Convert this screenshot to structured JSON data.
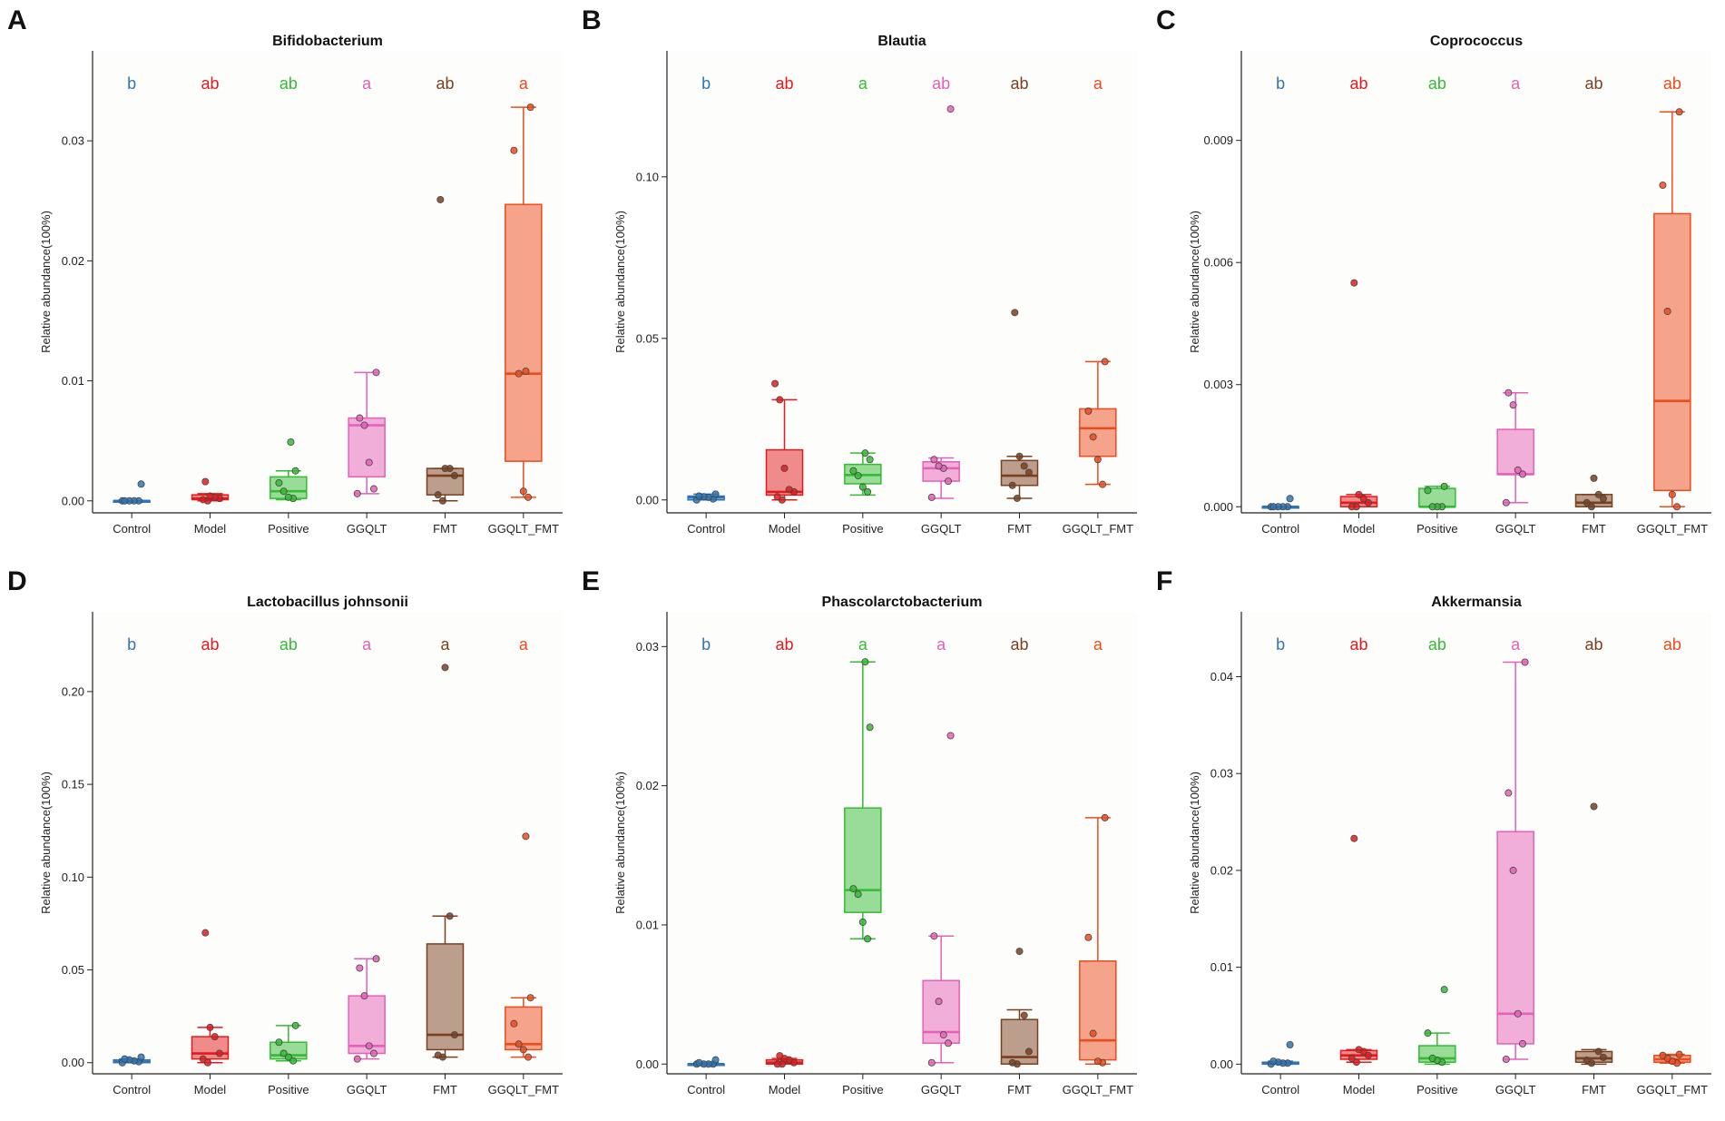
{
  "figure": {
    "groups": [
      "Control",
      "Model",
      "Positive",
      "GGQLT",
      "FMT",
      "GGQLT_FMT"
    ],
    "colors": [
      "#2e75b6",
      "#e41a1c",
      "#33bb33",
      "#e65fb8",
      "#7b3f1f",
      "#ee4b1b"
    ],
    "ylabel": "Relative abundance(100%)"
  },
  "chart_data": [
    {
      "type": "box",
      "panel": "A",
      "title": "Bifidobacterium",
      "ylabel": "Relative abundance(100%)",
      "ylim": [
        -0.001,
        0.0375
      ],
      "yticks": [
        0.0,
        0.01,
        0.02,
        0.03
      ],
      "ytick_labels": [
        "0.00",
        "0.01",
        "0.02",
        "0.03"
      ],
      "categories": [
        "Control",
        "Model",
        "Positive",
        "GGQLT",
        "FMT",
        "GGQLT_FMT"
      ],
      "letters": [
        "b",
        "ab",
        "ab",
        "a",
        "ab",
        "a"
      ],
      "series": [
        {
          "name": "Control",
          "box": {
            "wl": 0.0,
            "q1": 0.0,
            "med": 0.0,
            "q3": 0.0,
            "wh": 0.0
          },
          "points": [
            0.0,
            0.0,
            0.0,
            0.0,
            0.0,
            0.0014
          ]
        },
        {
          "name": "Model",
          "box": {
            "wl": 0.0,
            "q1": 0.0001,
            "med": 0.0002,
            "q3": 0.0005,
            "wh": 0.0006
          },
          "points": [
            0.0,
            0.0001,
            0.0002,
            0.0003,
            0.0004,
            0.0016
          ]
        },
        {
          "name": "Positive",
          "box": {
            "wl": 0.0001,
            "q1": 0.0002,
            "med": 0.0008,
            "q3": 0.002,
            "wh": 0.0025
          },
          "points": [
            0.0002,
            0.0003,
            0.0008,
            0.0015,
            0.0025,
            0.0049
          ]
        },
        {
          "name": "GGQLT",
          "box": {
            "wl": 0.0006,
            "q1": 0.002,
            "med": 0.0063,
            "q3": 0.0069,
            "wh": 0.0107
          },
          "points": [
            0.0006,
            0.001,
            0.0032,
            0.0063,
            0.0069,
            0.0107
          ]
        },
        {
          "name": "FMT",
          "box": {
            "wl": 0.0,
            "q1": 0.0005,
            "med": 0.0021,
            "q3": 0.0027,
            "wh": 0.0027
          },
          "points": [
            0.0,
            0.0005,
            0.0021,
            0.0027,
            0.0027,
            0.0251
          ]
        },
        {
          "name": "GGQLT_FMT",
          "box": {
            "wl": 0.0003,
            "q1": 0.0033,
            "med": 0.0106,
            "q3": 0.0247,
            "wh": 0.0328
          },
          "points": [
            0.0003,
            0.0008,
            0.0106,
            0.0292,
            0.0328,
            0.0108
          ]
        }
      ]
    },
    {
      "type": "box",
      "panel": "B",
      "title": "Blautia",
      "ylabel": "Relative abundance(100%)",
      "ylim": [
        -0.004,
        0.139
      ],
      "yticks": [
        0.0,
        0.05,
        0.1
      ],
      "ytick_labels": [
        "0.00",
        "0.05",
        "0.10"
      ],
      "categories": [
        "Control",
        "Model",
        "Positive",
        "GGQLT",
        "FMT",
        "GGQLT_FMT"
      ],
      "letters": [
        "b",
        "ab",
        "a",
        "ab",
        "ab",
        "a"
      ],
      "series": [
        {
          "name": "Control",
          "box": {
            "wl": 0.0,
            "q1": 0.0,
            "med": 0.0008,
            "q3": 0.0012,
            "wh": 0.0018
          },
          "points": [
            0.0,
            0.0003,
            0.0008,
            0.001,
            0.0012,
            0.0018
          ]
        },
        {
          "name": "Model",
          "box": {
            "wl": 0.0,
            "q1": 0.0015,
            "med": 0.0025,
            "q3": 0.0155,
            "wh": 0.031
          },
          "points": [
            0.0,
            0.001,
            0.0025,
            0.0032,
            0.0098,
            0.031,
            0.036
          ]
        },
        {
          "name": "Positive",
          "box": {
            "wl": 0.0015,
            "q1": 0.005,
            "med": 0.0077,
            "q3": 0.011,
            "wh": 0.0145
          },
          "points": [
            0.0025,
            0.004,
            0.0075,
            0.009,
            0.0125,
            0.0145
          ]
        },
        {
          "name": "GGQLT",
          "box": {
            "wl": 0.0005,
            "q1": 0.0058,
            "med": 0.0098,
            "q3": 0.0118,
            "wh": 0.013
          },
          "points": [
            0.0008,
            0.0058,
            0.0098,
            0.0105,
            0.0125,
            0.121
          ]
        },
        {
          "name": "FMT",
          "box": {
            "wl": 0.0005,
            "q1": 0.0045,
            "med": 0.0075,
            "q3": 0.0122,
            "wh": 0.0135
          },
          "points": [
            0.0005,
            0.0045,
            0.0085,
            0.0105,
            0.0135,
            0.058
          ]
        },
        {
          "name": "GGQLT_FMT",
          "box": {
            "wl": 0.0048,
            "q1": 0.0135,
            "med": 0.0222,
            "q3": 0.0282,
            "wh": 0.0428
          },
          "points": [
            0.0048,
            0.0125,
            0.0195,
            0.0275,
            0.0428
          ]
        }
      ]
    },
    {
      "type": "box",
      "panel": "C",
      "title": "Coprococcus",
      "ylabel": "Relative abundance(100%)",
      "ylim": [
        -0.00015,
        0.0112
      ],
      "yticks": [
        0.0,
        0.003,
        0.006,
        0.009
      ],
      "ytick_labels": [
        "0.000",
        "0.003",
        "0.006",
        "0.009"
      ],
      "categories": [
        "Control",
        "Model",
        "Positive",
        "GGQLT",
        "FMT",
        "GGQLT_FMT"
      ],
      "letters": [
        "b",
        "ab",
        "ab",
        "a",
        "ab",
        "ab"
      ],
      "series": [
        {
          "name": "Control",
          "box": {
            "wl": 0.0,
            "q1": 0.0,
            "med": 0.0,
            "q3": 0.0,
            "wh": 0.0
          },
          "points": [
            0.0,
            0.0,
            0.0,
            0.0,
            0.0,
            0.0002
          ]
        },
        {
          "name": "Model",
          "box": {
            "wl": 0.0,
            "q1": 0.0,
            "med": 0.0001,
            "q3": 0.00025,
            "wh": 0.0003
          },
          "points": [
            0.0,
            0.0,
            0.0001,
            0.0002,
            0.0003,
            0.0055
          ]
        },
        {
          "name": "Positive",
          "box": {
            "wl": 0.0,
            "q1": 0.0,
            "med": 0.0,
            "q3": 0.00045,
            "wh": 0.0005
          },
          "points": [
            0.0,
            0.0,
            0.0,
            0.0004,
            0.0005
          ]
        },
        {
          "name": "GGQLT",
          "box": {
            "wl": 0.0001,
            "q1": 0.0008,
            "med": 0.0008,
            "q3": 0.0019,
            "wh": 0.0028
          },
          "points": [
            0.0001,
            0.0008,
            0.0009,
            0.0025,
            0.0028
          ]
        },
        {
          "name": "FMT",
          "box": {
            "wl": 0.0,
            "q1": 0.0,
            "med": 0.0001,
            "q3": 0.0003,
            "wh": 0.0003
          },
          "points": [
            0.0,
            0.0001,
            0.0002,
            0.0003,
            0.0007
          ]
        },
        {
          "name": "GGQLT_FMT",
          "box": {
            "wl": 0.0,
            "q1": 0.0004,
            "med": 0.0026,
            "q3": 0.0072,
            "wh": 0.0097
          },
          "points": [
            0.0,
            0.0003,
            0.0048,
            0.0079,
            0.0097
          ]
        }
      ]
    },
    {
      "type": "box",
      "panel": "D",
      "title": "Lactobacillus johnsonii",
      "ylabel": "Relative abundance(100%)",
      "ylim": [
        -0.006,
        0.243
      ],
      "yticks": [
        0.0,
        0.05,
        0.1,
        0.15,
        0.2
      ],
      "ytick_labels": [
        "0.00",
        "0.05",
        "0.10",
        "0.15",
        "0.20"
      ],
      "categories": [
        "Control",
        "Model",
        "Positive",
        "GGQLT",
        "FMT",
        "GGQLT_FMT"
      ],
      "letters": [
        "b",
        "ab",
        "ab",
        "a",
        "a",
        "a"
      ],
      "series": [
        {
          "name": "Control",
          "box": {
            "wl": 0.0,
            "q1": 0.0,
            "med": 0.0005,
            "q3": 0.0015,
            "wh": 0.002
          },
          "points": [
            0.0,
            0.0005,
            0.001,
            0.0015,
            0.002,
            0.003
          ]
        },
        {
          "name": "Model",
          "box": {
            "wl": 0.0,
            "q1": 0.002,
            "med": 0.005,
            "q3": 0.014,
            "wh": 0.019
          },
          "points": [
            0.0,
            0.002,
            0.005,
            0.014,
            0.019,
            0.07
          ]
        },
        {
          "name": "Positive",
          "box": {
            "wl": 0.001,
            "q1": 0.002,
            "med": 0.004,
            "q3": 0.011,
            "wh": 0.02
          },
          "points": [
            0.001,
            0.003,
            0.005,
            0.011,
            0.02
          ]
        },
        {
          "name": "GGQLT",
          "box": {
            "wl": 0.002,
            "q1": 0.005,
            "med": 0.009,
            "q3": 0.036,
            "wh": 0.056
          },
          "points": [
            0.002,
            0.005,
            0.009,
            0.036,
            0.051,
            0.056
          ]
        },
        {
          "name": "FMT",
          "box": {
            "wl": 0.003,
            "q1": 0.007,
            "med": 0.015,
            "q3": 0.064,
            "wh": 0.079
          },
          "points": [
            0.003,
            0.004,
            0.015,
            0.079,
            0.213
          ]
        },
        {
          "name": "GGQLT_FMT",
          "box": {
            "wl": 0.003,
            "q1": 0.007,
            "med": 0.01,
            "q3": 0.03,
            "wh": 0.035
          },
          "points": [
            0.003,
            0.007,
            0.01,
            0.021,
            0.035,
            0.122
          ]
        }
      ]
    },
    {
      "type": "box",
      "panel": "E",
      "title": "Phascolarctobacterium",
      "ylabel": "Relative abundance(100%)",
      "ylim": [
        -0.0007,
        0.0325
      ],
      "yticks": [
        0.0,
        0.01,
        0.02,
        0.03
      ],
      "ytick_labels": [
        "0.00",
        "0.01",
        "0.02",
        "0.03"
      ],
      "categories": [
        "Control",
        "Model",
        "Positive",
        "GGQLT",
        "FMT",
        "GGQLT_FMT"
      ],
      "letters": [
        "b",
        "ab",
        "a",
        "a",
        "ab",
        "a"
      ],
      "series": [
        {
          "name": "Control",
          "box": {
            "wl": 0.0,
            "q1": 0.0,
            "med": 0.0,
            "q3": 0.0,
            "wh": 0.0001
          },
          "points": [
            0.0,
            0.0,
            0.0,
            0.0,
            0.0001,
            0.0003
          ]
        },
        {
          "name": "Model",
          "box": {
            "wl": 0.0,
            "q1": 0.0,
            "med": 0.0001,
            "q3": 0.0003,
            "wh": 0.0004
          },
          "points": [
            0.0,
            0.0,
            0.0001,
            0.0003,
            0.0004,
            0.0006
          ]
        },
        {
          "name": "Positive",
          "box": {
            "wl": 0.009,
            "q1": 0.0109,
            "med": 0.0125,
            "q3": 0.0184,
            "wh": 0.0289
          },
          "points": [
            0.009,
            0.0102,
            0.0122,
            0.0126,
            0.0242,
            0.0289
          ]
        },
        {
          "name": "GGQLT",
          "box": {
            "wl": 0.0001,
            "q1": 0.0015,
            "med": 0.0023,
            "q3": 0.006,
            "wh": 0.0092
          },
          "points": [
            0.0001,
            0.0015,
            0.0021,
            0.0045,
            0.0092,
            0.0236
          ]
        },
        {
          "name": "FMT",
          "box": {
            "wl": 0.0,
            "q1": 0.0,
            "med": 0.0005,
            "q3": 0.0032,
            "wh": 0.0039
          },
          "points": [
            0.0,
            0.0001,
            0.0009,
            0.0035,
            0.0081
          ]
        },
        {
          "name": "GGQLT_FMT",
          "box": {
            "wl": 0.0,
            "q1": 0.0003,
            "med": 0.0017,
            "q3": 0.0074,
            "wh": 0.0177
          },
          "points": [
            0.0001,
            0.0002,
            0.0022,
            0.0091,
            0.0177
          ]
        }
      ]
    },
    {
      "type": "box",
      "panel": "F",
      "title": "Akkermansia",
      "ylabel": "Relative abundance(100%)",
      "ylim": [
        -0.001,
        0.0467
      ],
      "yticks": [
        0.0,
        0.01,
        0.02,
        0.03,
        0.04
      ],
      "ytick_labels": [
        "0.00",
        "0.01",
        "0.02",
        "0.03",
        "0.04"
      ],
      "categories": [
        "Control",
        "Model",
        "Positive",
        "GGQLT",
        "FMT",
        "GGQLT_FMT"
      ],
      "letters": [
        "b",
        "ab",
        "ab",
        "a",
        "ab",
        "ab"
      ],
      "series": [
        {
          "name": "Control",
          "box": {
            "wl": 0.0,
            "q1": 0.0,
            "med": 0.0001,
            "q3": 0.0002,
            "wh": 0.0003
          },
          "points": [
            0.0,
            0.0001,
            0.0001,
            0.0002,
            0.0003,
            0.002
          ]
        },
        {
          "name": "Model",
          "box": {
            "wl": 0.0002,
            "q1": 0.0005,
            "med": 0.0009,
            "q3": 0.0014,
            "wh": 0.0015
          },
          "points": [
            0.0002,
            0.0006,
            0.0009,
            0.0013,
            0.0015,
            0.0233
          ]
        },
        {
          "name": "Positive",
          "box": {
            "wl": 0.0,
            "q1": 0.0002,
            "med": 0.0006,
            "q3": 0.0019,
            "wh": 0.0032
          },
          "points": [
            0.0002,
            0.0004,
            0.0006,
            0.0032,
            0.0077
          ]
        },
        {
          "name": "GGQLT",
          "box": {
            "wl": 0.0005,
            "q1": 0.0021,
            "med": 0.0052,
            "q3": 0.024,
            "wh": 0.0415
          },
          "points": [
            0.0005,
            0.0021,
            0.0052,
            0.02,
            0.028,
            0.0415
          ]
        },
        {
          "name": "FMT",
          "box": {
            "wl": 0.0,
            "q1": 0.0002,
            "med": 0.0006,
            "q3": 0.0013,
            "wh": 0.0015
          },
          "points": [
            0.0001,
            0.0004,
            0.0007,
            0.0013,
            0.0266
          ]
        },
        {
          "name": "GGQLT_FMT",
          "box": {
            "wl": 0.0001,
            "q1": 0.0002,
            "med": 0.0005,
            "q3": 0.0009,
            "wh": 0.001
          },
          "points": [
            0.0001,
            0.0003,
            0.0006,
            0.0009,
            0.001
          ]
        }
      ]
    }
  ]
}
